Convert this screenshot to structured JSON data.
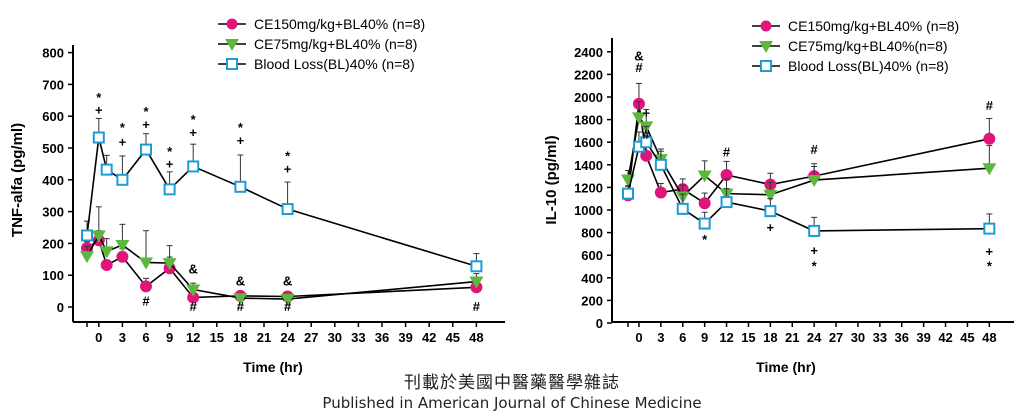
{
  "caption": {
    "zh": "刊載於美國中醫藥醫學雜誌",
    "en": "Published in American Journal of Chinese Medicine"
  },
  "colors": {
    "ce150": "#e0157a",
    "ce75": "#5cb83c",
    "bl": "#1e9bd7",
    "axis": "#000000"
  },
  "chart_data": [
    {
      "type": "line",
      "ylabel": "TNF-alfa (pg/ml)",
      "xlabel": "Time  (hr)",
      "xlim": [
        -2,
        48.5
      ],
      "ylim": [
        -30,
        850
      ],
      "xticks": [
        "-0",
        "0",
        "3",
        "6",
        "9",
        "12",
        "15",
        "18",
        "21",
        "24",
        "27",
        "30",
        "33",
        "36",
        "39",
        "42",
        "45",
        "48"
      ],
      "yticks": [
        "0",
        "100",
        "200",
        "300",
        "400",
        "500",
        "600",
        "700",
        "800"
      ],
      "legend_position": "top-right",
      "series": [
        {
          "name": "CE150mg/kg+BL40% (n=8)",
          "marker": "circle",
          "x": [
            -1,
            0,
            1,
            3,
            6,
            9,
            12,
            18,
            24,
            48
          ],
          "y": [
            185,
            210,
            132,
            158,
            65,
            122,
            30,
            35,
            33,
            62
          ],
          "err": [
            20,
            30,
            15,
            25,
            25,
            35,
            10,
            8,
            10,
            30
          ]
        },
        {
          "name": "CE75mg/kg+BL40% (n=8)",
          "marker": "triangle-down",
          "x": [
            -1,
            0,
            1,
            3,
            6,
            9,
            12,
            18,
            24,
            48
          ],
          "y": [
            160,
            225,
            175,
            195,
            140,
            138,
            55,
            28,
            25,
            80
          ],
          "err": [
            30,
            90,
            40,
            65,
            100,
            55,
            20,
            15,
            12,
            25
          ]
        },
        {
          "name": "Blood Loss(BL)40% (n=8)",
          "marker": "square",
          "x": [
            -1,
            0,
            1,
            3,
            6,
            9,
            12,
            18,
            24,
            48
          ],
          "y": [
            225,
            533,
            432,
            400,
            495,
            370,
            442,
            378,
            308,
            128
          ],
          "err": [
            45,
            60,
            45,
            75,
            50,
            55,
            70,
            100,
            85,
            40
          ]
        }
      ],
      "annotations": [
        {
          "x": 0,
          "y": 645,
          "text": "*"
        },
        {
          "x": 0,
          "y": 605,
          "text": "+"
        },
        {
          "x": 3,
          "y": 550,
          "text": "*"
        },
        {
          "x": 3,
          "y": 505,
          "text": "+"
        },
        {
          "x": 6,
          "y": 600,
          "text": "*"
        },
        {
          "x": 6,
          "y": 560,
          "text": "+"
        },
        {
          "x": 9,
          "y": 475,
          "text": "*"
        },
        {
          "x": 9,
          "y": 435,
          "text": "+"
        },
        {
          "x": 12,
          "y": 575,
          "text": "*"
        },
        {
          "x": 12,
          "y": 535,
          "text": "+"
        },
        {
          "x": 18,
          "y": 550,
          "text": "*"
        },
        {
          "x": 18,
          "y": 510,
          "text": "+"
        },
        {
          "x": 24,
          "y": 460,
          "text": "*"
        },
        {
          "x": 24,
          "y": 420,
          "text": "+"
        },
        {
          "x": 12,
          "y": 105,
          "text": "&"
        },
        {
          "x": 18,
          "y": 68,
          "text": "&"
        },
        {
          "x": 24,
          "y": 68,
          "text": "&"
        },
        {
          "x": 6,
          "y": 5,
          "text": "#"
        },
        {
          "x": 12,
          "y": -12,
          "text": "#"
        },
        {
          "x": 18,
          "y": -12,
          "text": "#"
        },
        {
          "x": 24,
          "y": -12,
          "text": "#"
        },
        {
          "x": 48,
          "y": -12,
          "text": "#"
        }
      ]
    },
    {
      "type": "line",
      "ylabel": "IL-10 (pg/ml)",
      "xlabel": "Time  (hr)",
      "xlim": [
        -2,
        48.5
      ],
      "ylim": [
        0,
        2450
      ],
      "xticks": [
        "-0",
        "0",
        "3",
        "6",
        "9",
        "12",
        "15",
        "18",
        "21",
        "24",
        "27",
        "30",
        "33",
        "36",
        "39",
        "42",
        "45",
        "48"
      ],
      "yticks": [
        "0",
        "200",
        "400",
        "600",
        "800",
        "1000",
        "1200",
        "1400",
        "1600",
        "1800",
        "2000",
        "2200",
        "2400"
      ],
      "legend_position": "top-right",
      "series": [
        {
          "name": "CE150mg/kg+BL40% (n=8)",
          "marker": "circle",
          "x": [
            -1,
            0,
            1,
            3,
            6,
            9,
            12,
            18,
            24,
            48
          ],
          "y": [
            1130,
            1940,
            1480,
            1155,
            1185,
            1060,
            1310,
            1225,
            1300,
            1630
          ],
          "err": [
            80,
            180,
            150,
            80,
            90,
            90,
            120,
            100,
            110,
            180
          ]
        },
        {
          "name": "CE75mg/kg+BL40%(n=8)",
          "marker": "triangle-down",
          "x": [
            -1,
            0,
            1,
            3,
            6,
            9,
            12,
            18,
            24,
            48
          ],
          "y": [
            1270,
            1820,
            1740,
            1450,
            1120,
            1305,
            1145,
            1135,
            1265,
            1370
          ],
          "err": [
            80,
            140,
            150,
            90,
            100,
            130,
            130,
            110,
            120,
            200
          ]
        },
        {
          "name": "Blood Loss(BL)40% (n=8)",
          "marker": "square",
          "x": [
            -1,
            0,
            1,
            3,
            6,
            9,
            12,
            18,
            24,
            48
          ],
          "y": [
            1145,
            1560,
            1600,
            1400,
            1010,
            880,
            1070,
            990,
            815,
            835
          ],
          "err": [
            70,
            130,
            140,
            120,
            130,
            100,
            120,
            110,
            120,
            130
          ]
        }
      ],
      "annotations": [
        {
          "x": 0,
          "y": 2325,
          "text": "&"
        },
        {
          "x": 0,
          "y": 2220,
          "text": "#"
        },
        {
          "x": 1,
          "y": 1820,
          "text": "+"
        },
        {
          "x": 1,
          "y": 1630,
          "text": "#"
        },
        {
          "x": 12,
          "y": 1475,
          "text": "#"
        },
        {
          "x": 24,
          "y": 1495,
          "text": "#"
        },
        {
          "x": 48,
          "y": 1885,
          "text": "#"
        },
        {
          "x": 9,
          "y": 700,
          "text": "*"
        },
        {
          "x": 18,
          "y": 805,
          "text": "+"
        },
        {
          "x": 24,
          "y": 600,
          "text": "+"
        },
        {
          "x": 24,
          "y": 465,
          "text": "*"
        },
        {
          "x": 48,
          "y": 595,
          "text": "+"
        },
        {
          "x": 48,
          "y": 465,
          "text": "*"
        }
      ]
    }
  ]
}
